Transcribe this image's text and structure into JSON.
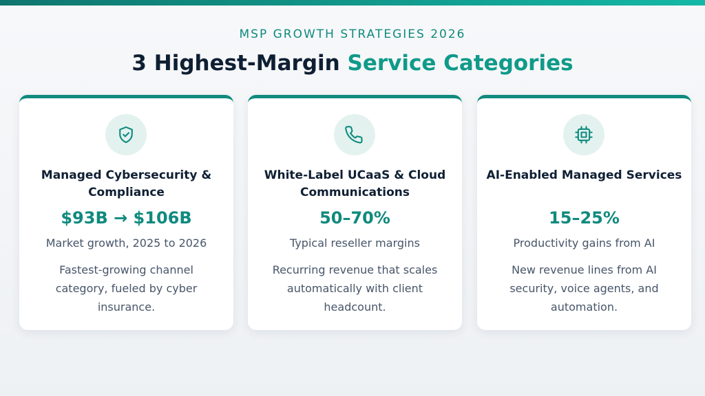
{
  "header": {
    "eyebrow": "MSP GROWTH STRATEGIES 2026",
    "title_main": "3 Highest-Margin ",
    "title_accent": "Service Categories"
  },
  "colors": {
    "accent": "#0f8a7e",
    "heading": "#0f1f33",
    "body_text": "#475569",
    "icon_bg": "#e3f2ef"
  },
  "cards": [
    {
      "icon": "shield-check-icon",
      "title": "Managed Cybersecurity & Compliance",
      "stat": "$93B → $106B",
      "stat_label": "Market growth, 2025 to 2026",
      "description": "Fastest-growing channel category, fueled by cyber insurance."
    },
    {
      "icon": "phone-icon",
      "title": "White-Label UCaaS & Cloud Communications",
      "stat": "50–70%",
      "stat_label": "Typical reseller margins",
      "description": "Recurring revenue that scales automatically with client headcount."
    },
    {
      "icon": "cpu-chip-icon",
      "title": "AI-Enabled Managed Services",
      "stat": "15–25%",
      "stat_label": "Productivity gains from AI",
      "description": "New revenue lines from AI security, voice agents, and automation."
    }
  ]
}
